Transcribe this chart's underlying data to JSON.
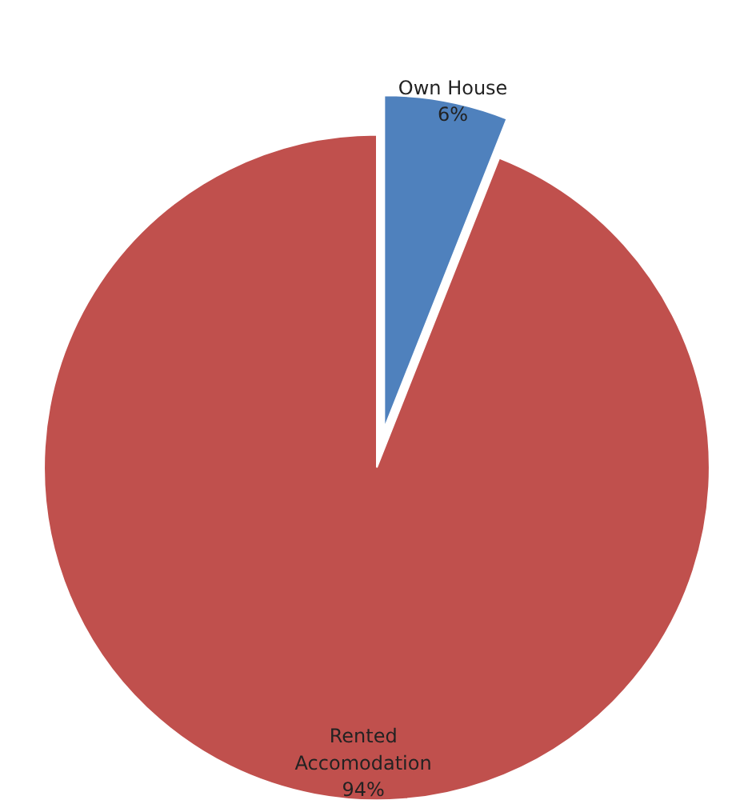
{
  "chart_data": {
    "type": "pie",
    "categories": [
      "Own House",
      "Rented Accomodation"
    ],
    "values": [
      6,
      94
    ],
    "colors": [
      "#4f81bd",
      "#c0504d"
    ],
    "value_labels": [
      "6%",
      "94%"
    ]
  }
}
